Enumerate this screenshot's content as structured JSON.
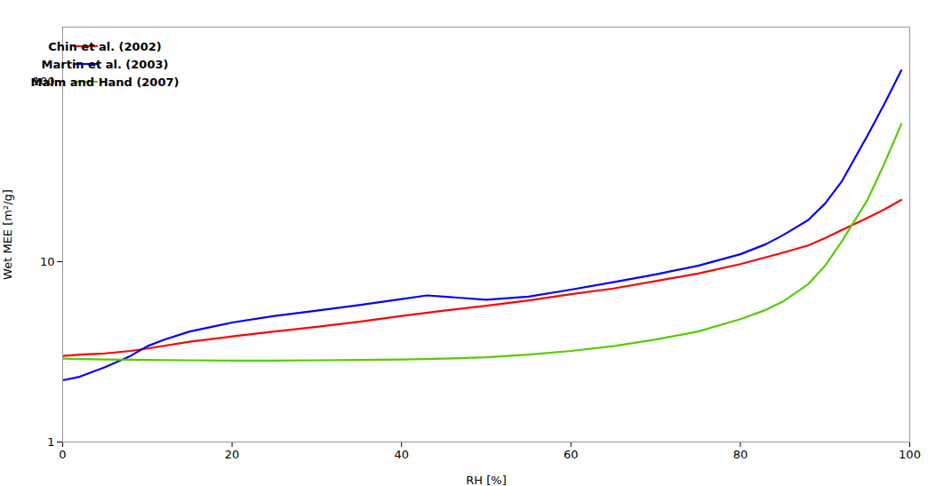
{
  "chart_data": {
    "type": "line",
    "title": "",
    "xlabel": "RH [%]",
    "ylabel": "Wet MEE [m²/g]",
    "log": "y",
    "xlim": [
      0,
      100
    ],
    "ylim": [
      1,
      200
    ],
    "xticks": [
      0,
      20,
      40,
      60,
      80,
      100
    ],
    "yticks": [
      1,
      10,
      100
    ],
    "grid": false,
    "legend": "upper left",
    "series": [
      {
        "name": "Chin et al. (2002)",
        "color": "#ff0000",
        "x": [
          0,
          2,
          5,
          8,
          10,
          15,
          20,
          25,
          30,
          35,
          40,
          45,
          50,
          55,
          60,
          65,
          70,
          75,
          80,
          85,
          88,
          90,
          92,
          95,
          97,
          99
        ],
        "values": [
          3.0,
          3.05,
          3.1,
          3.2,
          3.3,
          3.6,
          3.85,
          4.1,
          4.35,
          4.65,
          5.0,
          5.35,
          5.7,
          6.1,
          6.6,
          7.1,
          7.8,
          8.6,
          9.7,
          11.2,
          12.3,
          13.5,
          15.0,
          17.5,
          19.5,
          22.0
        ]
      },
      {
        "name": "Martin et al. (2003)",
        "color": "#0000ff",
        "x": [
          0,
          2,
          5,
          8,
          10,
          12,
          15,
          20,
          25,
          30,
          35,
          40,
          43,
          47,
          50,
          55,
          60,
          65,
          70,
          75,
          80,
          83,
          85,
          88,
          90,
          92,
          95,
          97,
          99
        ],
        "values": [
          2.2,
          2.3,
          2.6,
          3.0,
          3.4,
          3.7,
          4.1,
          4.6,
          5.0,
          5.35,
          5.75,
          6.2,
          6.5,
          6.3,
          6.15,
          6.4,
          7.0,
          7.7,
          8.5,
          9.5,
          11.0,
          12.5,
          14.0,
          17.0,
          21.0,
          28.0,
          50.0,
          75.0,
          115.0
        ]
      },
      {
        "name": "Malm and Hand (2007)",
        "color": "#55cc00",
        "x": [
          0,
          5,
          10,
          15,
          20,
          25,
          30,
          35,
          40,
          45,
          50,
          55,
          60,
          65,
          70,
          75,
          80,
          83,
          85,
          88,
          90,
          92,
          95,
          97,
          99
        ],
        "values": [
          2.9,
          2.87,
          2.85,
          2.84,
          2.83,
          2.83,
          2.84,
          2.85,
          2.87,
          2.9,
          2.95,
          3.05,
          3.2,
          3.4,
          3.7,
          4.1,
          4.8,
          5.4,
          6.0,
          7.5,
          9.5,
          13.0,
          22.0,
          35.0,
          58.0
        ]
      }
    ]
  }
}
